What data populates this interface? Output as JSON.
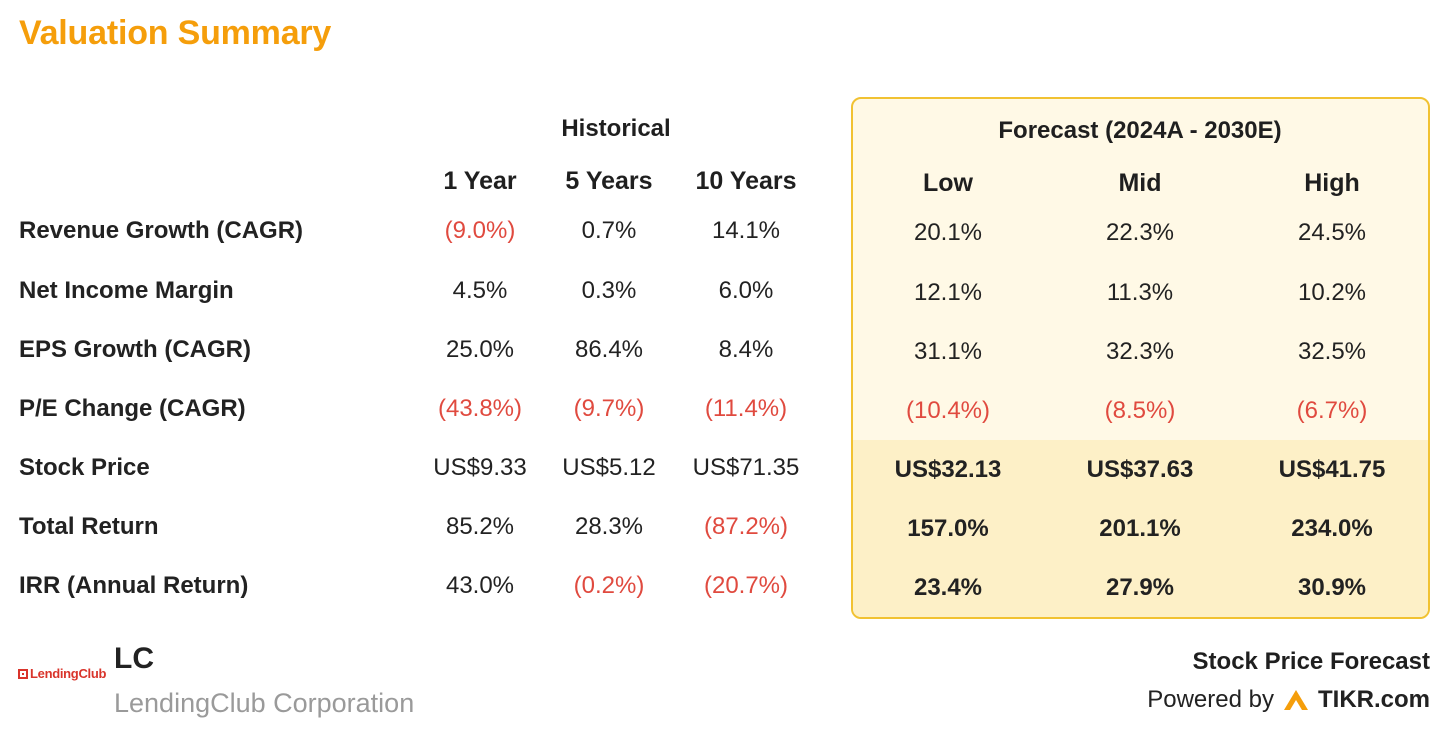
{
  "title": "Valuation Summary",
  "colors": {
    "accent": "#f59e0b",
    "negative": "#e04a3f",
    "forecast_bg": "#fff9e6",
    "forecast_border": "#f1c232"
  },
  "headers": {
    "historical_group": "Historical",
    "forecast_group": "Forecast (2024A - 2030E)",
    "columns": [
      "1 Year",
      "5 Years",
      "10 Years",
      "Low",
      "Mid",
      "High"
    ]
  },
  "rows": [
    {
      "label": "Revenue Growth (CAGR)",
      "values": [
        "(9.0%)",
        "0.7%",
        "14.1%",
        "20.1%",
        "22.3%",
        "24.5%"
      ]
    },
    {
      "label": "Net Income Margin",
      "values": [
        "4.5%",
        "0.3%",
        "6.0%",
        "12.1%",
        "11.3%",
        "10.2%"
      ]
    },
    {
      "label": "EPS Growth (CAGR)",
      "values": [
        "25.0%",
        "86.4%",
        "8.4%",
        "31.1%",
        "32.3%",
        "32.5%"
      ]
    },
    {
      "label": "P/E Change (CAGR)",
      "values": [
        "(43.8%)",
        "(9.7%)",
        "(11.4%)",
        "(10.4%)",
        "(8.5%)",
        "(6.7%)"
      ]
    },
    {
      "label": "Stock Price",
      "values": [
        "US$9.33",
        "US$5.12",
        "US$71.35",
        "US$32.13",
        "US$37.63",
        "US$41.75"
      ]
    },
    {
      "label": "Total Return",
      "values": [
        "85.2%",
        "28.3%",
        "(87.2%)",
        "157.0%",
        "201.1%",
        "234.0%"
      ]
    },
    {
      "label": "IRR (Annual Return)",
      "values": [
        "43.0%",
        "(0.2%)",
        "(20.7%)",
        "23.4%",
        "27.9%",
        "30.9%"
      ]
    }
  ],
  "company": {
    "logo_text": "LendingClub",
    "ticker": "LC",
    "name": "LendingClub Corporation"
  },
  "footer": {
    "label": "Stock Price Forecast",
    "powered_by": "Powered by",
    "brand": "TIKR.com"
  }
}
